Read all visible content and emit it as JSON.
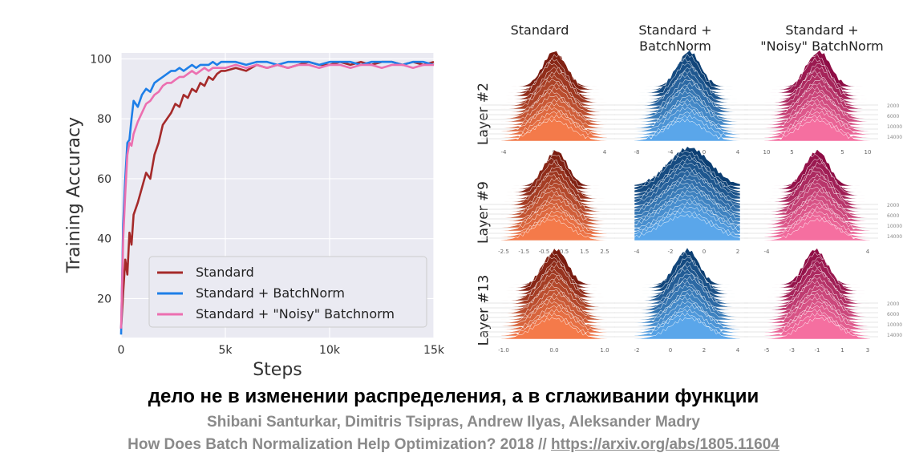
{
  "chart_data": [
    {
      "type": "line",
      "title": "",
      "xlabel": "Steps",
      "ylabel": "Training Accuracy",
      "xlim": [
        0,
        15000
      ],
      "ylim": [
        7,
        102
      ],
      "xticks": [
        0,
        5000,
        10000,
        15000
      ],
      "xtick_labels": [
        "0",
        "5k",
        "10k",
        "15k"
      ],
      "yticks": [
        20,
        40,
        60,
        80,
        100
      ],
      "ytick_labels": [
        "20",
        "40",
        "60",
        "80",
        "100"
      ],
      "grid": true,
      "legend_position": "lower-right",
      "series": [
        {
          "name": "Standard",
          "color": "#a52a2a",
          "x": [
            0,
            100,
            200,
            300,
            400,
            500,
            600,
            800,
            1000,
            1200,
            1400,
            1600,
            1800,
            2000,
            2200,
            2400,
            2600,
            2800,
            3000,
            3200,
            3400,
            3600,
            3800,
            4000,
            4200,
            4400,
            4600,
            4800,
            5000,
            5500,
            6000,
            6500,
            7000,
            7500,
            8000,
            8500,
            9000,
            9500,
            10000,
            10500,
            11000,
            11500,
            12000,
            12500,
            13000,
            13500,
            14000,
            14500,
            15000
          ],
          "y": [
            10,
            22,
            33,
            28,
            42,
            38,
            48,
            52,
            57,
            62,
            60,
            68,
            72,
            78,
            80,
            82,
            85,
            84,
            88,
            87,
            90,
            89,
            92,
            91,
            94,
            93,
            95,
            96,
            96,
            97,
            96,
            98,
            97,
            98,
            97,
            98,
            99,
            98,
            98,
            99,
            98,
            99,
            98,
            99,
            99,
            98,
            99,
            98,
            99
          ]
        },
        {
          "name": "Standard + BatchNorm",
          "color": "#1e7fe8",
          "x": [
            0,
            100,
            200,
            300,
            400,
            500,
            600,
            800,
            1000,
            1200,
            1400,
            1600,
            1800,
            2000,
            2200,
            2400,
            2600,
            2800,
            3000,
            3200,
            3400,
            3600,
            3800,
            4000,
            4200,
            4400,
            4600,
            4800,
            5000,
            5500,
            6000,
            6500,
            7000,
            7500,
            8000,
            8500,
            9000,
            9500,
            10000,
            10500,
            11000,
            11500,
            12000,
            12500,
            13000,
            13500,
            14000,
            14500,
            15000
          ],
          "y": [
            8,
            45,
            60,
            72,
            73,
            80,
            86,
            84,
            88,
            90,
            89,
            92,
            93,
            94,
            95,
            96,
            96,
            97,
            96,
            97,
            98,
            97,
            98,
            98,
            98,
            99,
            98,
            99,
            99,
            99,
            98,
            99,
            99,
            98,
            99,
            99,
            99,
            98,
            99,
            99,
            99,
            98,
            99,
            99,
            99,
            98,
            99,
            99,
            98
          ]
        },
        {
          "name": "Standard + \"Noisy\" Batchnorm",
          "color": "#ec6fb0",
          "x": [
            0,
            100,
            200,
            300,
            400,
            500,
            600,
            800,
            1000,
            1200,
            1400,
            1600,
            1800,
            2000,
            2200,
            2400,
            2600,
            2800,
            3000,
            3200,
            3400,
            3600,
            3800,
            4000,
            4200,
            4400,
            4600,
            4800,
            5000,
            5500,
            6000,
            6500,
            7000,
            7500,
            8000,
            8500,
            9000,
            9500,
            10000,
            10500,
            11000,
            11500,
            12000,
            12500,
            13000,
            13500,
            14000,
            14500,
            15000
          ],
          "y": [
            10,
            40,
            55,
            68,
            72,
            71,
            75,
            79,
            82,
            85,
            86,
            88,
            89,
            91,
            92,
            92,
            93,
            94,
            94,
            95,
            96,
            95,
            96,
            97,
            96,
            97,
            97,
            97,
            97,
            98,
            97,
            98,
            97,
            98,
            97,
            98,
            98,
            97,
            98,
            98,
            97,
            98,
            98,
            97,
            98,
            98,
            97,
            98,
            98
          ]
        }
      ]
    },
    {
      "type": "area",
      "column_titles": [
        "Standard",
        "Standard +\nBatchNorm",
        "Standard +\n\"Noisy\" BatchNorm"
      ],
      "row_labels": [
        "Layer #2",
        "Layer #9",
        "Layer #13"
      ],
      "step_labels": [
        "2000",
        "6000",
        "10000",
        "14000"
      ],
      "colors": {
        "standard": "#d9412b",
        "batchnorm": "#2c7fc4",
        "noisy": "#e0437a"
      },
      "panels": [
        [
          {
            "scheme": "standard",
            "ticks": [
              "-4",
              "0",
              "4"
            ]
          },
          {
            "scheme": "batchnorm",
            "ticks": [
              "-8",
              "-4",
              "0",
              "4"
            ]
          },
          {
            "scheme": "noisy",
            "ticks": [
              "10",
              "5",
              "0",
              "5",
              "10"
            ]
          }
        ],
        [
          {
            "scheme": "standard",
            "ticks": [
              "-2.5",
              "-1.5",
              "-0.5",
              "0.5",
              "1.5",
              "2.5"
            ]
          },
          {
            "scheme": "batchnorm",
            "ticks": [
              "-4",
              "-2",
              "0",
              "2"
            ]
          },
          {
            "scheme": "noisy",
            "ticks": [
              "-4",
              "0",
              "4"
            ]
          }
        ],
        [
          {
            "scheme": "standard",
            "ticks": [
              "-1.0",
              "0.0",
              "1.0"
            ]
          },
          {
            "scheme": "batchnorm",
            "ticks": [
              "-2",
              "0",
              "2",
              "4"
            ]
          },
          {
            "scheme": "noisy",
            "ticks": [
              "-5",
              "-3",
              "-1",
              "1",
              "3"
            ]
          }
        ]
      ]
    }
  ],
  "headline": "дело не в изменении распределения, а в сглаживании функции",
  "authors": "Shibani Santurkar, Dimitris Tsipras, Andrew Ilyas, Aleksander Madry",
  "citation_text": "How Does Batch Normalization Help Optimization? 2018 // ",
  "citation_link": "https://arxiv.org/abs/1805.11604"
}
